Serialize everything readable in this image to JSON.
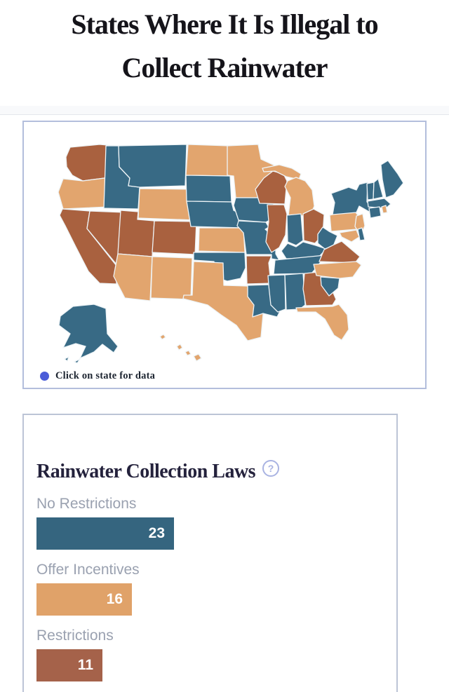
{
  "header": {
    "title_line1": "States Where It Is Illegal to",
    "title_line2": "Collect Rainwater"
  },
  "map_panel": {
    "legend_label": "Click on state for data",
    "legend_dot_color": "#4a5cd8",
    "state_border_color": "#eef4f7",
    "category_colors": {
      "no_restrictions": "#386a85",
      "offer_incentives": "#e2a56e",
      "restrictions": "#a9613f"
    }
  },
  "chart_panel": {
    "title": "Rainwater Collection Laws",
    "help_icon_glyph": "?"
  },
  "chart_data": [
    {
      "type": "heatmap",
      "subtype": "us-choropleth-map",
      "legend": "Click on state for data",
      "categories": {
        "no_restrictions": "No Restrictions",
        "offer_incentives": "Offer Incentives",
        "restrictions": "Restrictions"
      },
      "states": [
        {
          "id": "AK",
          "category": "no_restrictions"
        },
        {
          "id": "HI",
          "category": "offer_incentives"
        },
        {
          "id": "WA",
          "category": "restrictions"
        },
        {
          "id": "OR",
          "category": "offer_incentives"
        },
        {
          "id": "CA",
          "category": "restrictions"
        },
        {
          "id": "NV",
          "category": "restrictions"
        },
        {
          "id": "ID",
          "category": "no_restrictions"
        },
        {
          "id": "MT",
          "category": "no_restrictions"
        },
        {
          "id": "WY",
          "category": "offer_incentives"
        },
        {
          "id": "UT",
          "category": "restrictions"
        },
        {
          "id": "CO",
          "category": "restrictions"
        },
        {
          "id": "AZ",
          "category": "offer_incentives"
        },
        {
          "id": "NM",
          "category": "offer_incentives"
        },
        {
          "id": "ND",
          "category": "offer_incentives"
        },
        {
          "id": "SD",
          "category": "no_restrictions"
        },
        {
          "id": "NE",
          "category": "no_restrictions"
        },
        {
          "id": "KS",
          "category": "offer_incentives"
        },
        {
          "id": "OK",
          "category": "no_restrictions"
        },
        {
          "id": "TX",
          "category": "offer_incentives"
        },
        {
          "id": "MN",
          "category": "offer_incentives"
        },
        {
          "id": "IA",
          "category": "no_restrictions"
        },
        {
          "id": "MO",
          "category": "no_restrictions"
        },
        {
          "id": "AR",
          "category": "restrictions"
        },
        {
          "id": "LA",
          "category": "no_restrictions"
        },
        {
          "id": "WI",
          "category": "restrictions"
        },
        {
          "id": "MI",
          "category": "offer_incentives"
        },
        {
          "id": "IL",
          "category": "restrictions"
        },
        {
          "id": "IN",
          "category": "no_restrictions"
        },
        {
          "id": "OH",
          "category": "restrictions"
        },
        {
          "id": "KY",
          "category": "no_restrictions"
        },
        {
          "id": "TN",
          "category": "no_restrictions"
        },
        {
          "id": "MS",
          "category": "no_restrictions"
        },
        {
          "id": "AL",
          "category": "no_restrictions"
        },
        {
          "id": "GA",
          "category": "restrictions"
        },
        {
          "id": "FL",
          "category": "offer_incentives"
        },
        {
          "id": "PA",
          "category": "offer_incentives"
        },
        {
          "id": "NY",
          "category": "no_restrictions"
        },
        {
          "id": "WV",
          "category": "no_restrictions"
        },
        {
          "id": "VA",
          "category": "restrictions"
        },
        {
          "id": "NC",
          "category": "offer_incentives"
        },
        {
          "id": "SC",
          "category": "no_restrictions"
        },
        {
          "id": "NJ",
          "category": "offer_incentives"
        },
        {
          "id": "MD",
          "category": "offer_incentives"
        },
        {
          "id": "DE",
          "category": "no_restrictions"
        },
        {
          "id": "VT",
          "category": "no_restrictions"
        },
        {
          "id": "NH",
          "category": "no_restrictions"
        },
        {
          "id": "ME",
          "category": "no_restrictions"
        },
        {
          "id": "MA",
          "category": "no_restrictions"
        },
        {
          "id": "CT",
          "category": "no_restrictions"
        },
        {
          "id": "RI",
          "category": "offer_incentives"
        }
      ]
    },
    {
      "type": "bar",
      "orientation": "horizontal",
      "title": "Rainwater Collection Laws",
      "categories": [
        "No Restrictions",
        "Offer Incentives",
        "Restrictions"
      ],
      "values": [
        23,
        16,
        11
      ],
      "colors": [
        "#35657f",
        "#e0a269",
        "#a5624a"
      ],
      "xlim": [
        0,
        23.5
      ],
      "grid": false,
      "value_labels": "inside-right"
    }
  ]
}
